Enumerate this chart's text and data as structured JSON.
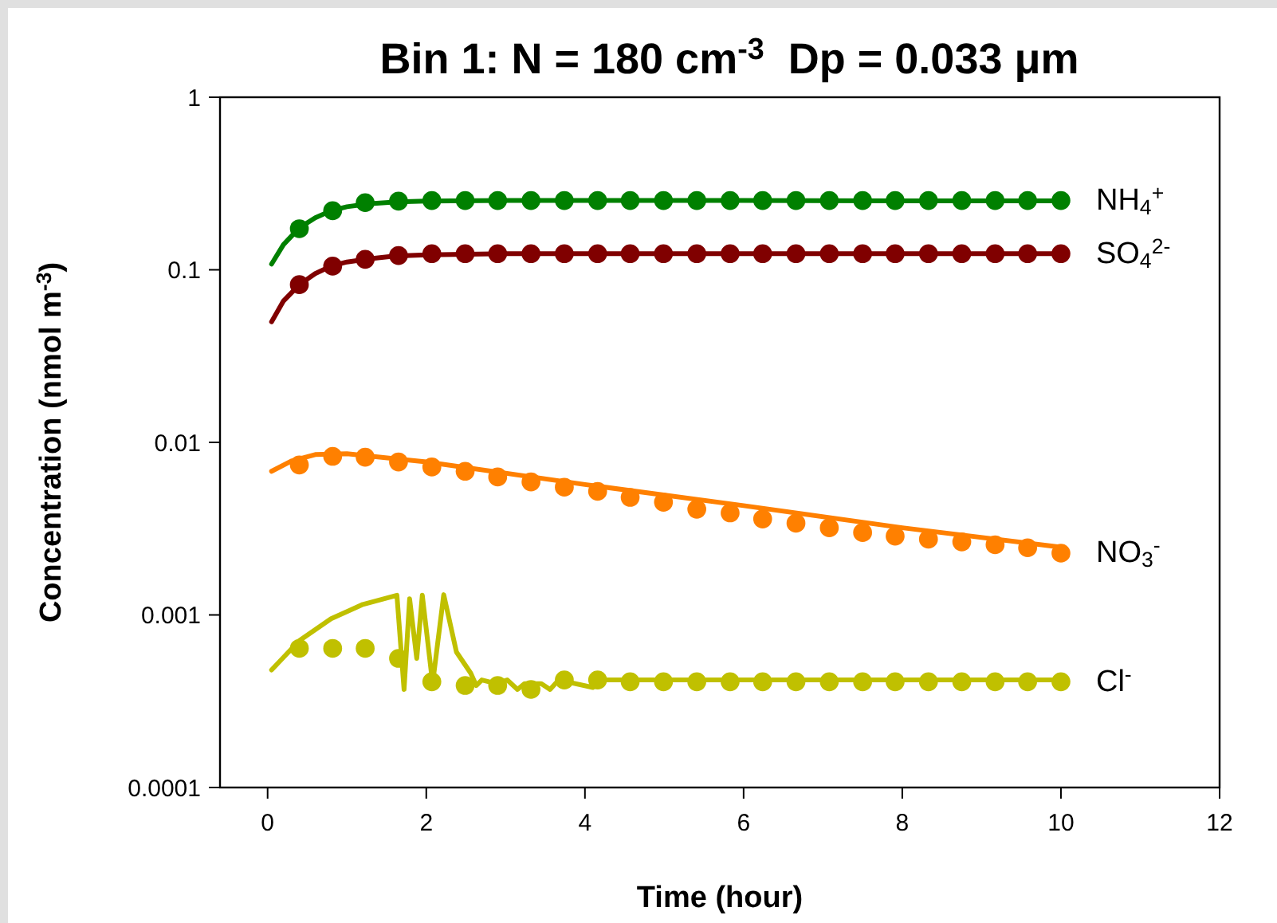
{
  "chart_data": {
    "type": "line",
    "title": "Bin 1: N = 180 cm$^{-3}$  Dp = 0.033 μm",
    "xlabel": "Time (hour)",
    "ylabel": "Concentration (nmol m$^{-3}$)",
    "xlim": [
      -0.6,
      12
    ],
    "xticks": [
      0,
      2,
      4,
      6,
      8,
      10,
      12
    ],
    "ylim": [
      0.0001,
      1
    ],
    "yticks": [
      0.0001,
      0.001,
      0.01,
      0.1,
      1
    ],
    "log": "y",
    "grid": false,
    "series": [
      {
        "marker": "none",
        "color": "#008000",
        "x": [
          0.05,
          0.2,
          0.4,
          0.6,
          0.8,
          1.0,
          1.3,
          1.6,
          2.0,
          3.0,
          4.0,
          6.0,
          8.0,
          10.0
        ],
        "values": [
          0.108,
          0.14,
          0.175,
          0.2,
          0.22,
          0.232,
          0.242,
          0.247,
          0.25,
          0.252,
          0.252,
          0.252,
          0.251,
          0.251
        ]
      },
      {
        "marker": "none",
        "color": "#800000",
        "x": [
          0.05,
          0.2,
          0.4,
          0.6,
          0.8,
          1.0,
          1.3,
          1.6,
          2.0,
          3.0,
          4.0,
          6.0,
          8.0,
          10.0
        ],
        "values": [
          0.05,
          0.066,
          0.082,
          0.095,
          0.105,
          0.111,
          0.116,
          0.12,
          0.122,
          0.124,
          0.124,
          0.124,
          0.124,
          0.124
        ]
      },
      {
        "marker": "none",
        "color": "#ff8000",
        "x": [
          0.05,
          0.3,
          0.6,
          1.0,
          2.0,
          4.0,
          6.0,
          8.0,
          10.0
        ],
        "values": [
          0.0068,
          0.0078,
          0.0085,
          0.0086,
          0.0077,
          0.0057,
          0.0043,
          0.0032,
          0.00247
        ]
      },
      {
        "marker": "none",
        "color": "#c0c000",
        "x": [
          0.05,
          0.4,
          0.8,
          1.2,
          1.63,
          1.72,
          1.79,
          1.88,
          1.95,
          2.08,
          2.22,
          2.38,
          2.56,
          2.63,
          2.7,
          2.88,
          3.02,
          3.15,
          3.24,
          3.45,
          3.56,
          3.67,
          4.1,
          4.24,
          6.0,
          8.0,
          10.0
        ],
        "values": [
          0.00048,
          0.00071,
          0.00095,
          0.00115,
          0.0013,
          0.00037,
          0.00124,
          0.00056,
          0.0013,
          0.0004,
          0.00131,
          0.00061,
          0.00046,
          0.00039,
          0.00042,
          0.0004,
          0.00042,
          0.00037,
          0.0004,
          0.0004,
          0.00037,
          0.00042,
          0.00038,
          0.00042,
          0.00042,
          0.00042,
          0.00042
        ]
      },
      {
        "type": "scatter",
        "marker": "circle",
        "name": "NH$_{4}$$^{+}$",
        "color": "#008000",
        "x": [
          0.4,
          0.82,
          1.23,
          1.65,
          2.07,
          2.49,
          2.9,
          3.32,
          3.74,
          4.16,
          4.57,
          4.99,
          5.41,
          5.83,
          6.24,
          6.66,
          7.08,
          7.5,
          7.91,
          8.33,
          8.75,
          9.17,
          9.58,
          10
        ],
        "values": [
          0.173,
          0.22,
          0.245,
          0.25,
          0.252,
          0.252,
          0.252,
          0.252,
          0.252,
          0.252,
          0.252,
          0.252,
          0.252,
          0.252,
          0.252,
          0.252,
          0.252,
          0.252,
          0.252,
          0.252,
          0.252,
          0.252,
          0.252,
          0.252
        ]
      },
      {
        "type": "scatter",
        "marker": "circle",
        "name": "SO$_{4}$$^{2-}$",
        "color": "#800000",
        "x": [
          0.4,
          0.82,
          1.23,
          1.65,
          2.07,
          2.49,
          2.9,
          3.32,
          3.74,
          4.16,
          4.57,
          4.99,
          5.41,
          5.83,
          6.24,
          6.66,
          7.08,
          7.5,
          7.91,
          8.33,
          8.75,
          9.17,
          9.58,
          10
        ],
        "values": [
          0.082,
          0.105,
          0.115,
          0.121,
          0.124,
          0.124,
          0.124,
          0.124,
          0.124,
          0.124,
          0.124,
          0.124,
          0.124,
          0.124,
          0.124,
          0.124,
          0.124,
          0.124,
          0.124,
          0.124,
          0.124,
          0.124,
          0.124,
          0.124
        ]
      },
      {
        "type": "scatter",
        "marker": "circle",
        "name": "NO$_{3}$$^{-}$",
        "color": "#ff8000",
        "x": [
          0.4,
          0.82,
          1.23,
          1.65,
          2.07,
          2.49,
          2.9,
          3.32,
          3.74,
          4.16,
          4.57,
          4.99,
          5.41,
          5.83,
          6.24,
          6.66,
          7.08,
          7.5,
          7.91,
          8.33,
          8.75,
          9.17,
          9.58,
          10
        ],
        "values": [
          0.0074,
          0.0083,
          0.0082,
          0.0077,
          0.0072,
          0.0068,
          0.0063,
          0.0059,
          0.0055,
          0.0052,
          0.0048,
          0.0045,
          0.0041,
          0.0039,
          0.0036,
          0.0034,
          0.0032,
          0.003,
          0.00286,
          0.00275,
          0.00265,
          0.00255,
          0.00245,
          0.00228
        ]
      },
      {
        "type": "scatter",
        "marker": "circle",
        "name": "Cl$^{-}$",
        "color": "#c0c000",
        "x": [
          0.4,
          0.82,
          1.23,
          1.65,
          2.07,
          2.49,
          2.9,
          3.32,
          3.74,
          4.16,
          4.57,
          4.99,
          5.41,
          5.83,
          6.24,
          6.66,
          7.08,
          7.5,
          7.91,
          8.33,
          8.75,
          9.17,
          9.58,
          10
        ],
        "values": [
          0.00064,
          0.00064,
          0.00064,
          0.00056,
          0.00041,
          0.00039,
          0.00039,
          0.00037,
          0.00042,
          0.00042,
          0.00041,
          0.00041,
          0.00041,
          0.00041,
          0.00041,
          0.00041,
          0.00041,
          0.00041,
          0.00041,
          0.00041,
          0.00041,
          0.00041,
          0.00041,
          0.00041
        ]
      }
    ]
  }
}
